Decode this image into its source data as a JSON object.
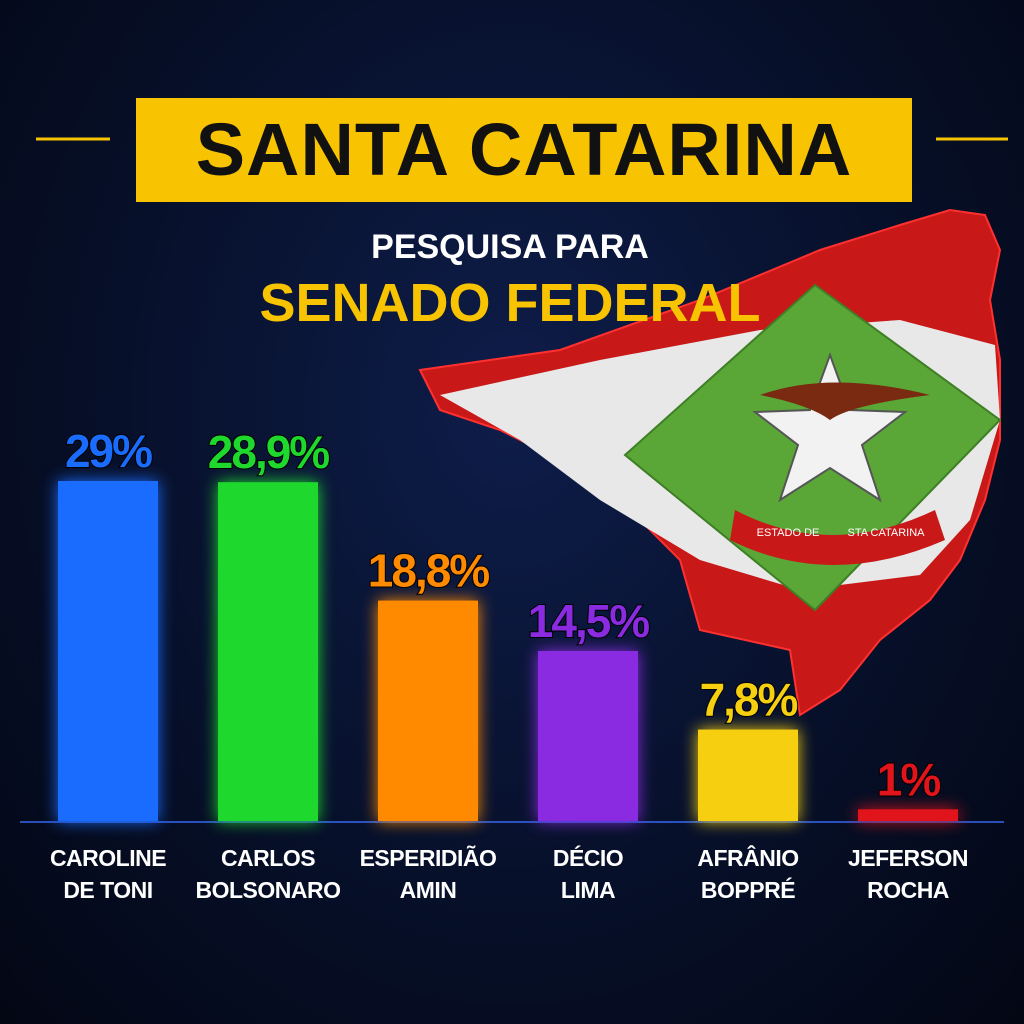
{
  "chart_data": {
    "type": "bar",
    "title": "SANTA CATARINA",
    "subtitle": "PESQUISA PARA",
    "subtitle_emphasis": "SENADO FEDERAL",
    "emblem_texts": [
      "ESTADO DE",
      "STA CATARINA"
    ],
    "categories": [
      "CAROLINE\nDE TONI",
      "CARLOS\nBOLSONARO",
      "ESPERIDIÃO\nAMIN",
      "DÉCIO\nLIMA",
      "AFRÂNIO\nBOPPRÉ",
      "JEFERSON\nROCHA"
    ],
    "values": [
      29,
      28.9,
      18.8,
      14.5,
      7.8,
      1
    ],
    "value_labels": [
      "29%",
      "28,9%",
      "18,8%",
      "14,5%",
      "7,8%",
      "1%"
    ],
    "colors": [
      "#1a6cff",
      "#1ed82e",
      "#ff8a00",
      "#8a2be2",
      "#f5cf10",
      "#e0141a"
    ]
  }
}
